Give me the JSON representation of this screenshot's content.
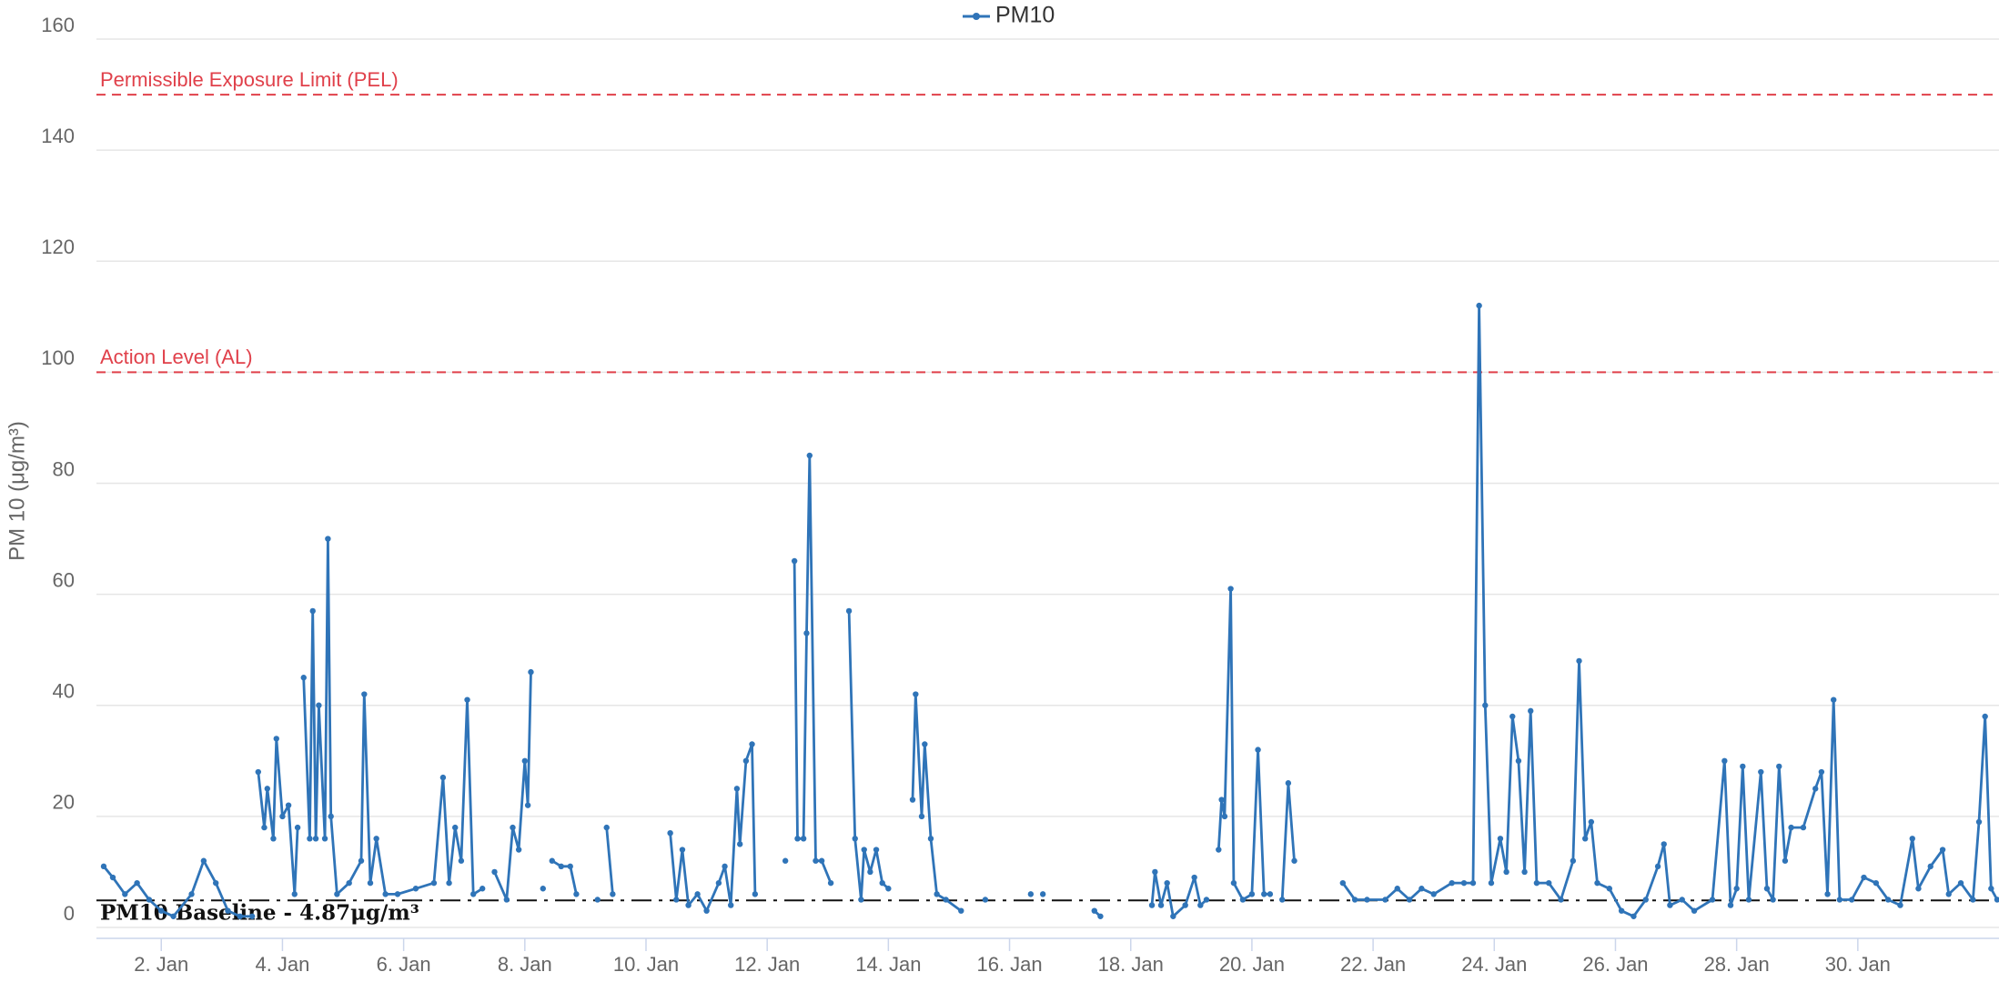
{
  "chart_data": {
    "type": "line",
    "y_label": "PM 10 (μg/m³)",
    "legend": "top",
    "grid": true,
    "xlim": [
      0.93,
      32.33
    ],
    "ylim": [
      0,
      160
    ],
    "yticks": [
      0,
      20,
      40,
      60,
      80,
      100,
      120,
      140,
      160
    ],
    "xticks": [
      {
        "value": 2,
        "label": "2. Jan"
      },
      {
        "value": 4,
        "label": "4. Jan"
      },
      {
        "value": 6,
        "label": "6. Jan"
      },
      {
        "value": 8,
        "label": "8. Jan"
      },
      {
        "value": 10,
        "label": "10. Jan"
      },
      {
        "value": 12,
        "label": "12. Jan"
      },
      {
        "value": 14,
        "label": "14. Jan"
      },
      {
        "value": 16,
        "label": "16. Jan"
      },
      {
        "value": 18,
        "label": "18. Jan"
      },
      {
        "value": 20,
        "label": "20. Jan"
      },
      {
        "value": 22,
        "label": "22. Jan"
      },
      {
        "value": 24,
        "label": "24. Jan"
      },
      {
        "value": 26,
        "label": "26. Jan"
      },
      {
        "value": 28,
        "label": "28. Jan"
      },
      {
        "value": 30,
        "label": "30. Jan"
      }
    ],
    "plot_lines": [
      {
        "value": 150,
        "label": "Permissible Exposure Limit (PEL)",
        "color": "#e0404a",
        "style": "dashed"
      },
      {
        "value": 100,
        "label": "Action Level (AL)",
        "color": "#e0404a",
        "style": "dashed"
      },
      {
        "value": 4.87,
        "label": "PM10 Baseline - 4.87μg/m³",
        "color": "#111111",
        "style": "dashdot"
      }
    ],
    "x": [
      1.05,
      1.2,
      1.4,
      1.6,
      1.8,
      2.0,
      2.2,
      2.5,
      2.7,
      2.9,
      3.1,
      3.3,
      3.5,
      3.55,
      3.6,
      3.7,
      3.75,
      3.85,
      3.9,
      4.0,
      4.1,
      4.2,
      4.25,
      4.3,
      4.35,
      4.45,
      4.5,
      4.55,
      4.6,
      4.7,
      4.75,
      4.8,
      4.9,
      5.1,
      5.3,
      5.35,
      5.45,
      5.55,
      5.7,
      5.9,
      6.2,
      6.5,
      6.65,
      6.75,
      6.85,
      6.95,
      7.05,
      7.15,
      7.3,
      7.4,
      7.5,
      7.7,
      7.8,
      7.9,
      8.0,
      8.05,
      8.1,
      8.2,
      8.3,
      8.4,
      8.45,
      8.6,
      8.75,
      8.85,
      9.0,
      9.2,
      9.3,
      9.35,
      9.45,
      10.0,
      10.4,
      10.5,
      10.6,
      10.7,
      10.85,
      11.0,
      11.2,
      11.3,
      11.4,
      11.5,
      11.55,
      11.65,
      11.75,
      11.8,
      12.0,
      12.3,
      12.4,
      12.45,
      12.5,
      12.6,
      12.65,
      12.7,
      12.8,
      12.9,
      13.05,
      13.2,
      13.35,
      13.45,
      13.55,
      13.6,
      13.7,
      13.8,
      13.9,
      14.0,
      14.2,
      14.4,
      14.45,
      14.55,
      14.6,
      14.7,
      14.8,
      14.95,
      15.2,
      15.4,
      15.6,
      16.0,
      16.35,
      16.45,
      16.55,
      17.0,
      17.4,
      17.5,
      18.0,
      18.35,
      18.4,
      18.5,
      18.6,
      18.7,
      18.9,
      19.05,
      19.15,
      19.25,
      19.35,
      19.45,
      19.5,
      19.55,
      19.65,
      19.7,
      19.85,
      20.0,
      20.1,
      20.2,
      20.3,
      20.4,
      20.5,
      20.6,
      20.7,
      21.1,
      21.5,
      21.7,
      21.9,
      22.2,
      22.4,
      22.6,
      22.8,
      23.0,
      23.3,
      23.5,
      23.65,
      23.75,
      23.85,
      23.95,
      24.1,
      24.2,
      24.3,
      24.4,
      24.5,
      24.6,
      24.7,
      24.9,
      25.1,
      25.3,
      25.4,
      25.5,
      25.6,
      25.7,
      25.9,
      26.1,
      26.3,
      26.5,
      26.7,
      26.8,
      26.9,
      27.1,
      27.3,
      27.6,
      27.8,
      27.9,
      28.0,
      28.1,
      28.2,
      28.4,
      28.5,
      28.6,
      28.7,
      28.8,
      28.9,
      29.1,
      29.3,
      29.4,
      29.5,
      29.6,
      29.7,
      29.9,
      30.1,
      30.3,
      30.5,
      30.7,
      30.9,
      31.0,
      31.2,
      31.4,
      31.5,
      31.7,
      31.9,
      32.0,
      32.1,
      32.2,
      32.3
    ],
    "series": [
      {
        "name": "PM10",
        "color": "#2f74b8",
        "values": [
          11,
          9,
          6,
          8,
          5,
          3,
          2,
          6,
          12,
          8,
          3,
          2,
          2,
          null,
          28,
          18,
          25,
          16,
          34,
          20,
          22,
          6,
          18,
          null,
          45,
          16,
          57,
          16,
          40,
          16,
          70,
          20,
          6,
          8,
          12,
          42,
          8,
          16,
          6,
          6,
          7,
          8,
          27,
          8,
          18,
          12,
          41,
          6,
          7,
          null,
          10,
          5,
          18,
          14,
          30,
          22,
          46,
          null,
          7,
          null,
          12,
          11,
          11,
          6,
          null,
          5,
          null,
          18,
          6,
          null,
          17,
          5,
          14,
          4,
          6,
          3,
          8,
          11,
          4,
          25,
          15,
          30,
          33,
          6,
          null,
          12,
          null,
          66,
          16,
          16,
          53,
          85,
          12,
          12,
          8,
          null,
          57,
          16,
          5,
          14,
          10,
          14,
          8,
          7,
          null,
          23,
          42,
          20,
          33,
          16,
          6,
          5,
          3,
          null,
          5,
          null,
          6,
          null,
          6,
          null,
          3,
          2,
          null,
          4,
          10,
          4,
          8,
          2,
          4,
          9,
          4,
          5,
          null,
          14,
          23,
          20,
          61,
          8,
          5,
          6,
          32,
          6,
          6,
          null,
          5,
          26,
          12,
          null,
          8,
          5,
          5,
          5,
          7,
          5,
          7,
          6,
          8,
          8,
          8,
          112,
          40,
          8,
          16,
          10,
          38,
          30,
          10,
          39,
          8,
          8,
          5,
          12,
          48,
          16,
          19,
          8,
          7,
          3,
          2,
          5,
          11,
          15,
          4,
          5,
          3,
          5,
          30,
          4,
          7,
          29,
          5,
          28,
          7,
          5,
          29,
          12,
          18,
          18,
          25,
          28,
          6,
          41,
          5,
          5,
          9,
          8,
          5,
          4,
          16,
          7,
          11,
          14,
          6,
          8,
          5,
          19,
          38,
          7,
          5
        ]
      }
    ]
  }
}
